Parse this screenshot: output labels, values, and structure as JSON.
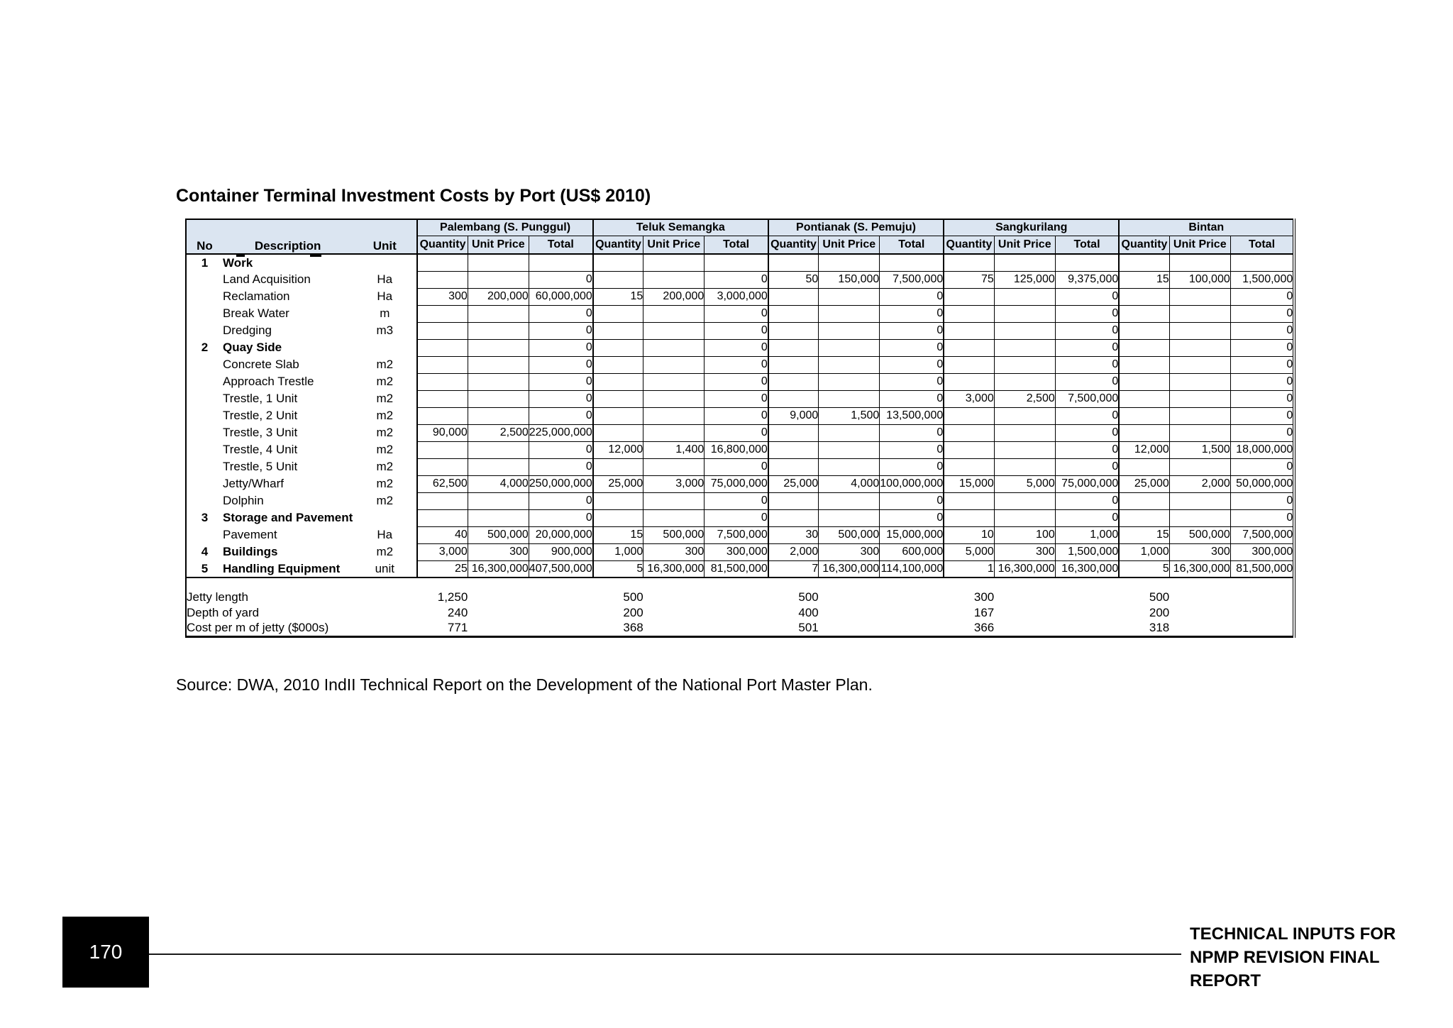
{
  "page": {
    "title": "Container Terminal Investment Costs by Port (US$ 2010)",
    "source": "Source: DWA, 2010 IndII Technical Report on the Development of the National Port Master Plan.",
    "footer": {
      "page_number": "170",
      "line1": "TECHNICAL INPUTS FOR",
      "line2": "NPMP REVISION FINAL REPORT"
    }
  },
  "colors": {
    "header_fill": "#dbe5f1",
    "border": "#000000",
    "page_number_box": "#000000"
  },
  "table": {
    "ports": [
      "Palembang (S. Punggul)",
      "Teluk Semangka",
      "Pontianak (S. Pemuju)",
      "Sangkurilang",
      "Bintan"
    ],
    "col_headers": {
      "no": "No",
      "description": "Description",
      "unit": "Unit",
      "quantity": "Quantity",
      "unit_price": "Unit Price",
      "total": "Total"
    },
    "rows": [
      {
        "no": "1",
        "desc": "Work",
        "unit": "",
        "cells": [
          [
            "",
            "",
            ""
          ],
          [
            "",
            "",
            ""
          ],
          [
            "",
            "",
            ""
          ],
          [
            "",
            "",
            ""
          ],
          [
            "",
            "",
            ""
          ]
        ]
      },
      {
        "no": "",
        "desc": "Land Acquisition",
        "unit": "Ha",
        "cells": [
          [
            "",
            "",
            "0"
          ],
          [
            "",
            "",
            "0"
          ],
          [
            "50",
            "150,000",
            "7,500,000"
          ],
          [
            "75",
            "125,000",
            "9,375,000"
          ],
          [
            "15",
            "100,000",
            "1,500,000"
          ]
        ]
      },
      {
        "no": "",
        "desc": "Reclamation",
        "unit": "Ha",
        "cells": [
          [
            "300",
            "200,000",
            "60,000,000"
          ],
          [
            "15",
            "200,000",
            "3,000,000"
          ],
          [
            "",
            "",
            "0"
          ],
          [
            "",
            "",
            "0"
          ],
          [
            "",
            "",
            "0"
          ]
        ]
      },
      {
        "no": "",
        "desc": "Break Water",
        "unit": "m",
        "cells": [
          [
            "",
            "",
            "0"
          ],
          [
            "",
            "",
            "0"
          ],
          [
            "",
            "",
            "0"
          ],
          [
            "",
            "",
            "0"
          ],
          [
            "",
            "",
            "0"
          ]
        ]
      },
      {
        "no": "",
        "desc": "Dredging",
        "unit": "m3",
        "cells": [
          [
            "",
            "",
            "0"
          ],
          [
            "",
            "",
            "0"
          ],
          [
            "",
            "",
            "0"
          ],
          [
            "",
            "",
            "0"
          ],
          [
            "",
            "",
            "0"
          ]
        ]
      },
      {
        "no": "2",
        "desc": "Quay Side",
        "unit": "",
        "cells": [
          [
            "",
            "",
            "0"
          ],
          [
            "",
            "",
            "0"
          ],
          [
            "",
            "",
            "0"
          ],
          [
            "",
            "",
            "0"
          ],
          [
            "",
            "",
            "0"
          ]
        ]
      },
      {
        "no": "",
        "desc": "Concrete Slab",
        "unit": "m2",
        "cells": [
          [
            "",
            "",
            "0"
          ],
          [
            "",
            "",
            "0"
          ],
          [
            "",
            "",
            "0"
          ],
          [
            "",
            "",
            "0"
          ],
          [
            "",
            "",
            "0"
          ]
        ]
      },
      {
        "no": "",
        "desc": "Approach Trestle",
        "unit": "m2",
        "cells": [
          [
            "",
            "",
            "0"
          ],
          [
            "",
            "",
            "0"
          ],
          [
            "",
            "",
            "0"
          ],
          [
            "",
            "",
            "0"
          ],
          [
            "",
            "",
            "0"
          ]
        ]
      },
      {
        "no": "",
        "desc": "Trestle, 1 Unit",
        "unit": "m2",
        "cells": [
          [
            "",
            "",
            "0"
          ],
          [
            "",
            "",
            "0"
          ],
          [
            "",
            "",
            "0"
          ],
          [
            "3,000",
            "2,500",
            "7,500,000"
          ],
          [
            "",
            "",
            "0"
          ]
        ]
      },
      {
        "no": "",
        "desc": "Trestle, 2 Unit",
        "unit": "m2",
        "cells": [
          [
            "",
            "",
            "0"
          ],
          [
            "",
            "",
            "0"
          ],
          [
            "9,000",
            "1,500",
            "13,500,000"
          ],
          [
            "",
            "",
            "0"
          ],
          [
            "",
            "",
            "0"
          ]
        ]
      },
      {
        "no": "",
        "desc": "Trestle, 3 Unit",
        "unit": "m2",
        "cells": [
          [
            "90,000",
            "2,500",
            "225,000,000"
          ],
          [
            "",
            "",
            "0"
          ],
          [
            "",
            "",
            "0"
          ],
          [
            "",
            "",
            "0"
          ],
          [
            "",
            "",
            "0"
          ]
        ]
      },
      {
        "no": "",
        "desc": "Trestle, 4 Unit",
        "unit": "m2",
        "cells": [
          [
            "",
            "",
            "0"
          ],
          [
            "12,000",
            "1,400",
            "16,800,000"
          ],
          [
            "",
            "",
            "0"
          ],
          [
            "",
            "",
            "0"
          ],
          [
            "12,000",
            "1,500",
            "18,000,000"
          ]
        ]
      },
      {
        "no": "",
        "desc": "Trestle, 5 Unit",
        "unit": "m2",
        "cells": [
          [
            "",
            "",
            "0"
          ],
          [
            "",
            "",
            "0"
          ],
          [
            "",
            "",
            "0"
          ],
          [
            "",
            "",
            "0"
          ],
          [
            "",
            "",
            "0"
          ]
        ]
      },
      {
        "no": "",
        "desc": "Jetty/Wharf",
        "unit": "m2",
        "cells": [
          [
            "62,500",
            "4,000",
            "250,000,000"
          ],
          [
            "25,000",
            "3,000",
            "75,000,000"
          ],
          [
            "25,000",
            "4,000",
            "100,000,000"
          ],
          [
            "15,000",
            "5,000",
            "75,000,000"
          ],
          [
            "25,000",
            "2,000",
            "50,000,000"
          ]
        ]
      },
      {
        "no": "",
        "desc": "Dolphin",
        "unit": "m2",
        "cells": [
          [
            "",
            "",
            "0"
          ],
          [
            "",
            "",
            "0"
          ],
          [
            "",
            "",
            "0"
          ],
          [
            "",
            "",
            "0"
          ],
          [
            "",
            "",
            "0"
          ]
        ]
      },
      {
        "no": "3",
        "desc": "Storage and Pavement",
        "unit": "",
        "cells": [
          [
            "",
            "",
            "0"
          ],
          [
            "",
            "",
            "0"
          ],
          [
            "",
            "",
            "0"
          ],
          [
            "",
            "",
            "0"
          ],
          [
            "",
            "",
            "0"
          ]
        ]
      },
      {
        "no": "",
        "desc": "Pavement",
        "unit": "Ha",
        "cells": [
          [
            "40",
            "500,000",
            "20,000,000"
          ],
          [
            "15",
            "500,000",
            "7,500,000"
          ],
          [
            "30",
            "500,000",
            "15,000,000"
          ],
          [
            "10",
            "100",
            "1,000"
          ],
          [
            "15",
            "500,000",
            "7,500,000"
          ]
        ]
      },
      {
        "no": "4",
        "desc": "Buildings",
        "unit": "m2",
        "cells": [
          [
            "3,000",
            "300",
            "900,000"
          ],
          [
            "1,000",
            "300",
            "300,000"
          ],
          [
            "2,000",
            "300",
            "600,000"
          ],
          [
            "5,000",
            "300",
            "1,500,000"
          ],
          [
            "1,000",
            "300",
            "300,000"
          ]
        ]
      },
      {
        "no": "5",
        "desc": "Handling Equipment",
        "unit": "unit",
        "cells": [
          [
            "25",
            "16,300,000",
            "407,500,000"
          ],
          [
            "5",
            "16,300,000",
            "81,500,000"
          ],
          [
            "7",
            "16,300,000",
            "114,100,000"
          ],
          [
            "1",
            "16,300,000",
            "16,300,000"
          ],
          [
            "5",
            "16,300,000",
            "81,500,000"
          ]
        ]
      }
    ],
    "summary": [
      {
        "label": "Jetty length",
        "values": [
          "1,250",
          "500",
          "500",
          "300",
          "500"
        ]
      },
      {
        "label": "Depth of yard",
        "values": [
          "240",
          "200",
          "400",
          "167",
          "200"
        ]
      },
      {
        "label": "Cost per m of jetty ($000s)",
        "values": [
          "771",
          "368",
          "501",
          "366",
          "318"
        ]
      }
    ]
  }
}
